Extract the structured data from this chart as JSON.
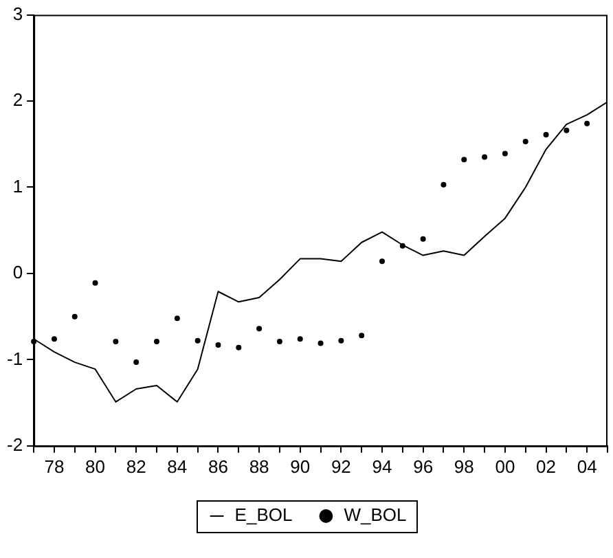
{
  "chart_data": {
    "type": "line",
    "x": [
      1977,
      1978,
      1979,
      1980,
      1981,
      1982,
      1983,
      1984,
      1985,
      1986,
      1987,
      1988,
      1989,
      1990,
      1991,
      1992,
      1993,
      1994,
      1995,
      1996,
      1997,
      1998,
      1999,
      2000,
      2001,
      2002,
      2003,
      2004,
      2005
    ],
    "series": [
      {
        "name": "E_BOL",
        "type": "line",
        "color": "#000000",
        "marker": "none",
        "line_style": "solid",
        "values": [
          -0.76,
          -0.91,
          -1.03,
          -1.11,
          -1.49,
          -1.34,
          -1.3,
          -1.49,
          -1.11,
          -0.21,
          -0.33,
          -0.28,
          -0.07,
          0.17,
          0.17,
          0.14,
          0.36,
          0.48,
          0.33,
          0.21,
          0.26,
          0.21,
          0.43,
          0.64,
          1.0,
          1.44,
          1.73,
          1.84,
          1.99
        ]
      },
      {
        "name": "W_BOL",
        "type": "scatter",
        "color": "#000000",
        "marker": "circle",
        "values": [
          -0.79,
          -0.76,
          -0.5,
          -0.11,
          -0.79,
          -1.03,
          -0.79,
          -0.52,
          -0.78,
          -0.83,
          -0.86,
          -0.64,
          -0.79,
          -0.76,
          -0.81,
          -0.78,
          -0.72,
          0.14,
          0.32,
          0.4,
          1.03,
          1.32,
          1.35,
          1.39,
          1.53,
          1.61,
          1.66,
          1.74,
          null
        ]
      }
    ],
    "xlim": [
      1977,
      2005
    ],
    "xticks": [
      {
        "value": 1977,
        "label": null
      },
      {
        "value": 1978,
        "label": "78"
      },
      {
        "value": 1979,
        "label": null
      },
      {
        "value": 1980,
        "label": "80"
      },
      {
        "value": 1981,
        "label": null
      },
      {
        "value": 1982,
        "label": "82"
      },
      {
        "value": 1983,
        "label": null
      },
      {
        "value": 1984,
        "label": "84"
      },
      {
        "value": 1985,
        "label": null
      },
      {
        "value": 1986,
        "label": "86"
      },
      {
        "value": 1987,
        "label": null
      },
      {
        "value": 1988,
        "label": "88"
      },
      {
        "value": 1989,
        "label": null
      },
      {
        "value": 1990,
        "label": "90"
      },
      {
        "value": 1991,
        "label": null
      },
      {
        "value": 1992,
        "label": "92"
      },
      {
        "value": 1993,
        "label": null
      },
      {
        "value": 1994,
        "label": "94"
      },
      {
        "value": 1995,
        "label": null
      },
      {
        "value": 1996,
        "label": "96"
      },
      {
        "value": 1997,
        "label": null
      },
      {
        "value": 1998,
        "label": "98"
      },
      {
        "value": 1999,
        "label": null
      },
      {
        "value": 2000,
        "label": "00"
      },
      {
        "value": 2001,
        "label": null
      },
      {
        "value": 2002,
        "label": "02"
      },
      {
        "value": 2003,
        "label": null
      },
      {
        "value": 2004,
        "label": "04"
      },
      {
        "value": 2005,
        "label": null
      }
    ],
    "ylim": [
      -2,
      3
    ],
    "yticks": [
      -2,
      -1,
      0,
      1,
      2,
      3
    ],
    "grid": false,
    "legend": "bottom"
  }
}
